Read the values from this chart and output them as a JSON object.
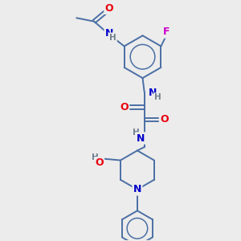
{
  "bg_color": "#ececec",
  "bond_color": "#4a6fa5",
  "atom_colors": {
    "O": "#e8000d",
    "N": "#0000cc",
    "F": "#cc00cc",
    "H": "#708090",
    "C": "#4a6fa5"
  },
  "figsize": [
    3.0,
    3.0
  ],
  "dpi": 100
}
